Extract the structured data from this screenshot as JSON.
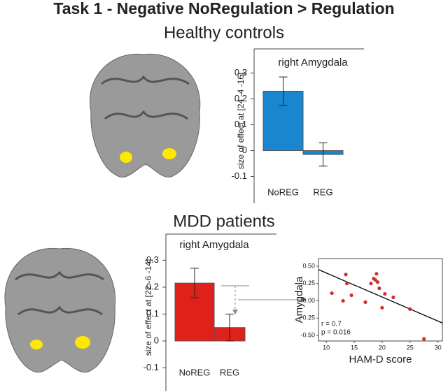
{
  "title": "Task 1 - Negative NoRegulation > Regulation",
  "chart_data": [
    {
      "type": "bar",
      "heading": "Healthy controls",
      "title": "right Amygdala",
      "ylabel": "size of effect at [24 -4 -16]",
      "categories": [
        "NoREG",
        "REG"
      ],
      "values": [
        0.23,
        -0.015
      ],
      "errors": [
        0.055,
        0.045
      ],
      "color": "#1a86d0",
      "ylim": [
        -0.15,
        0.38
      ],
      "yticks": [
        -0.1,
        0,
        0.1,
        0.2,
        0.3
      ]
    },
    {
      "type": "bar",
      "heading": "MDD patients",
      "title": "right Amygdala",
      "ylabel": "size of effect at [22 -6 -14]",
      "categories": [
        "NoREG",
        "REG"
      ],
      "values": [
        0.215,
        0.05
      ],
      "errors": [
        0.055,
        0.05
      ],
      "color": "#e0201b",
      "ylim": [
        -0.135,
        0.384
      ],
      "yticks": [
        -0.1,
        0,
        0.1,
        0.2,
        0.3
      ]
    },
    {
      "type": "scatter",
      "xlabel": "HAM-D score",
      "ylabel": "Amygdala",
      "color": "#d03030",
      "x": [
        11,
        13,
        13.5,
        13.7,
        14.5,
        17,
        18,
        18.5,
        18.8,
        19,
        19.2,
        19.5,
        20,
        20.5,
        22,
        25,
        27.5
      ],
      "y": [
        0.11,
        0.0,
        0.38,
        0.25,
        0.08,
        -0.02,
        0.25,
        0.32,
        0.3,
        0.39,
        0.27,
        0.18,
        -0.1,
        0.1,
        0.05,
        -0.12,
        -0.55
      ],
      "fit": {
        "x": [
          8.6,
          30.8
        ],
        "y": [
          0.45,
          -0.32
        ]
      },
      "annotations": [
        "r = 0.7",
        "p = 0.016"
      ],
      "xlim": [
        8.6,
        30.8
      ],
      "ylim": [
        -0.58,
        0.61
      ],
      "xticks": [
        10,
        15,
        20,
        25,
        30
      ],
      "yticks": [
        {
          "value": -0.5,
          "label": "-0.50"
        },
        {
          "value": -0.25,
          "label": "-0.25"
        },
        {
          "value": 0,
          "label": "0.00"
        },
        {
          "value": 0.25,
          "label": "0.25"
        },
        {
          "value": 0.5,
          "label": "0.50"
        }
      ]
    }
  ]
}
